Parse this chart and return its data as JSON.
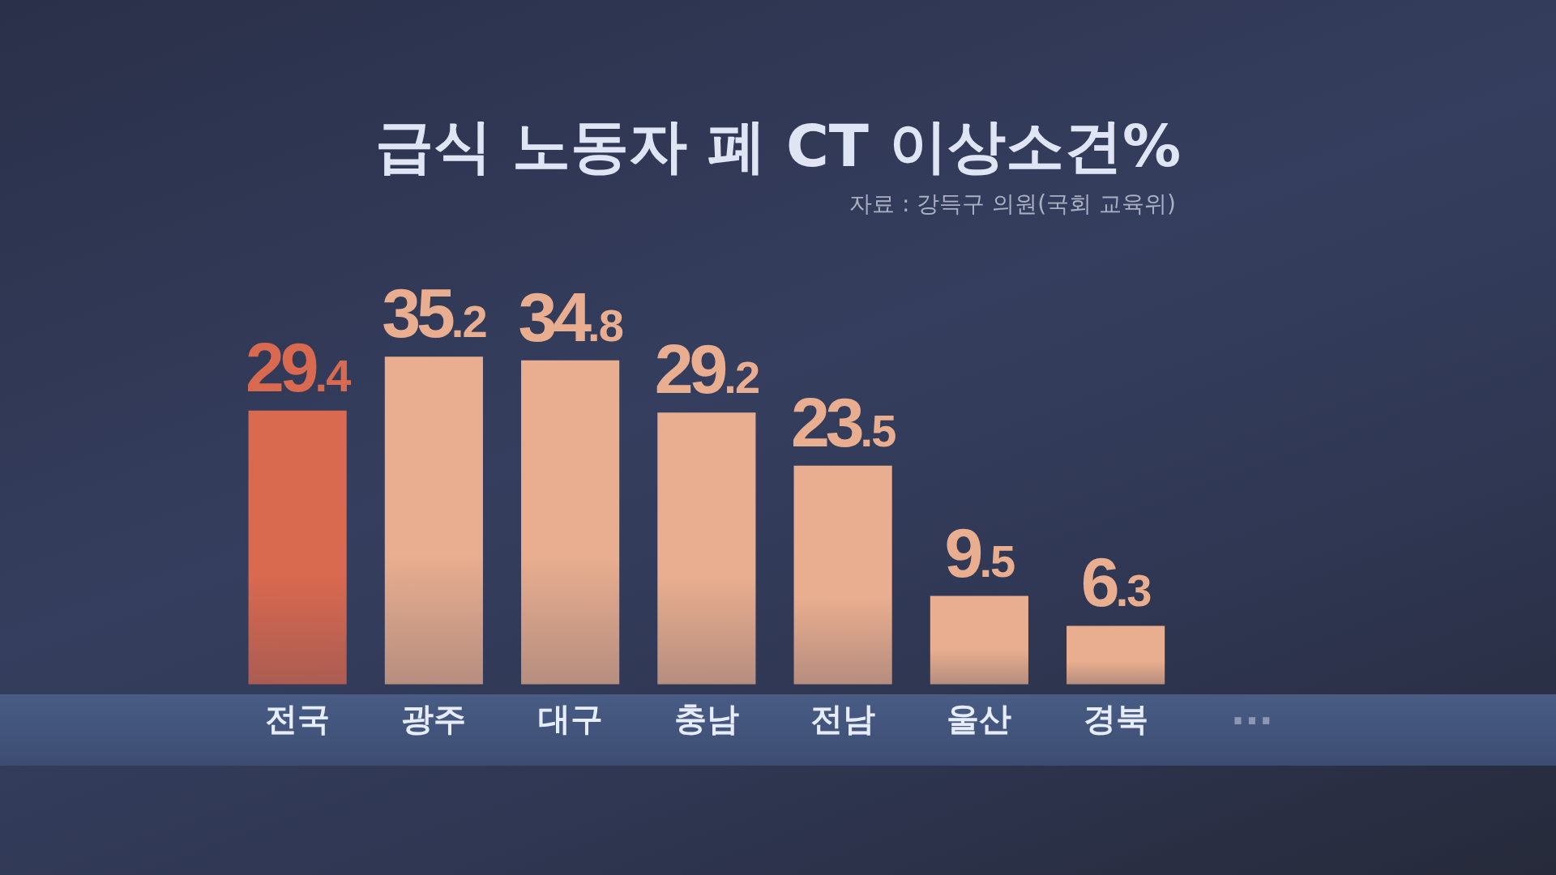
{
  "chart_data": {
    "type": "bar",
    "title": "급식 노동자 폐 CT 이상소견%",
    "annotations": [
      "자료 : 강득구 의원(국회 교육위)"
    ],
    "categories": [
      "전국",
      "광주",
      "대구",
      "충남",
      "전남",
      "울산",
      "경북",
      "···"
    ],
    "values": [
      29.4,
      35.2,
      34.8,
      29.2,
      23.5,
      9.5,
      6.3,
      null
    ],
    "colors": [
      "#d9694f",
      "#e9ae8f",
      "#e9ae8f",
      "#e9ae8f",
      "#e9ae8f",
      "#e9ae8f",
      "#e9ae8f",
      null
    ],
    "data_labels": true,
    "tick_labels": "x"
  }
}
